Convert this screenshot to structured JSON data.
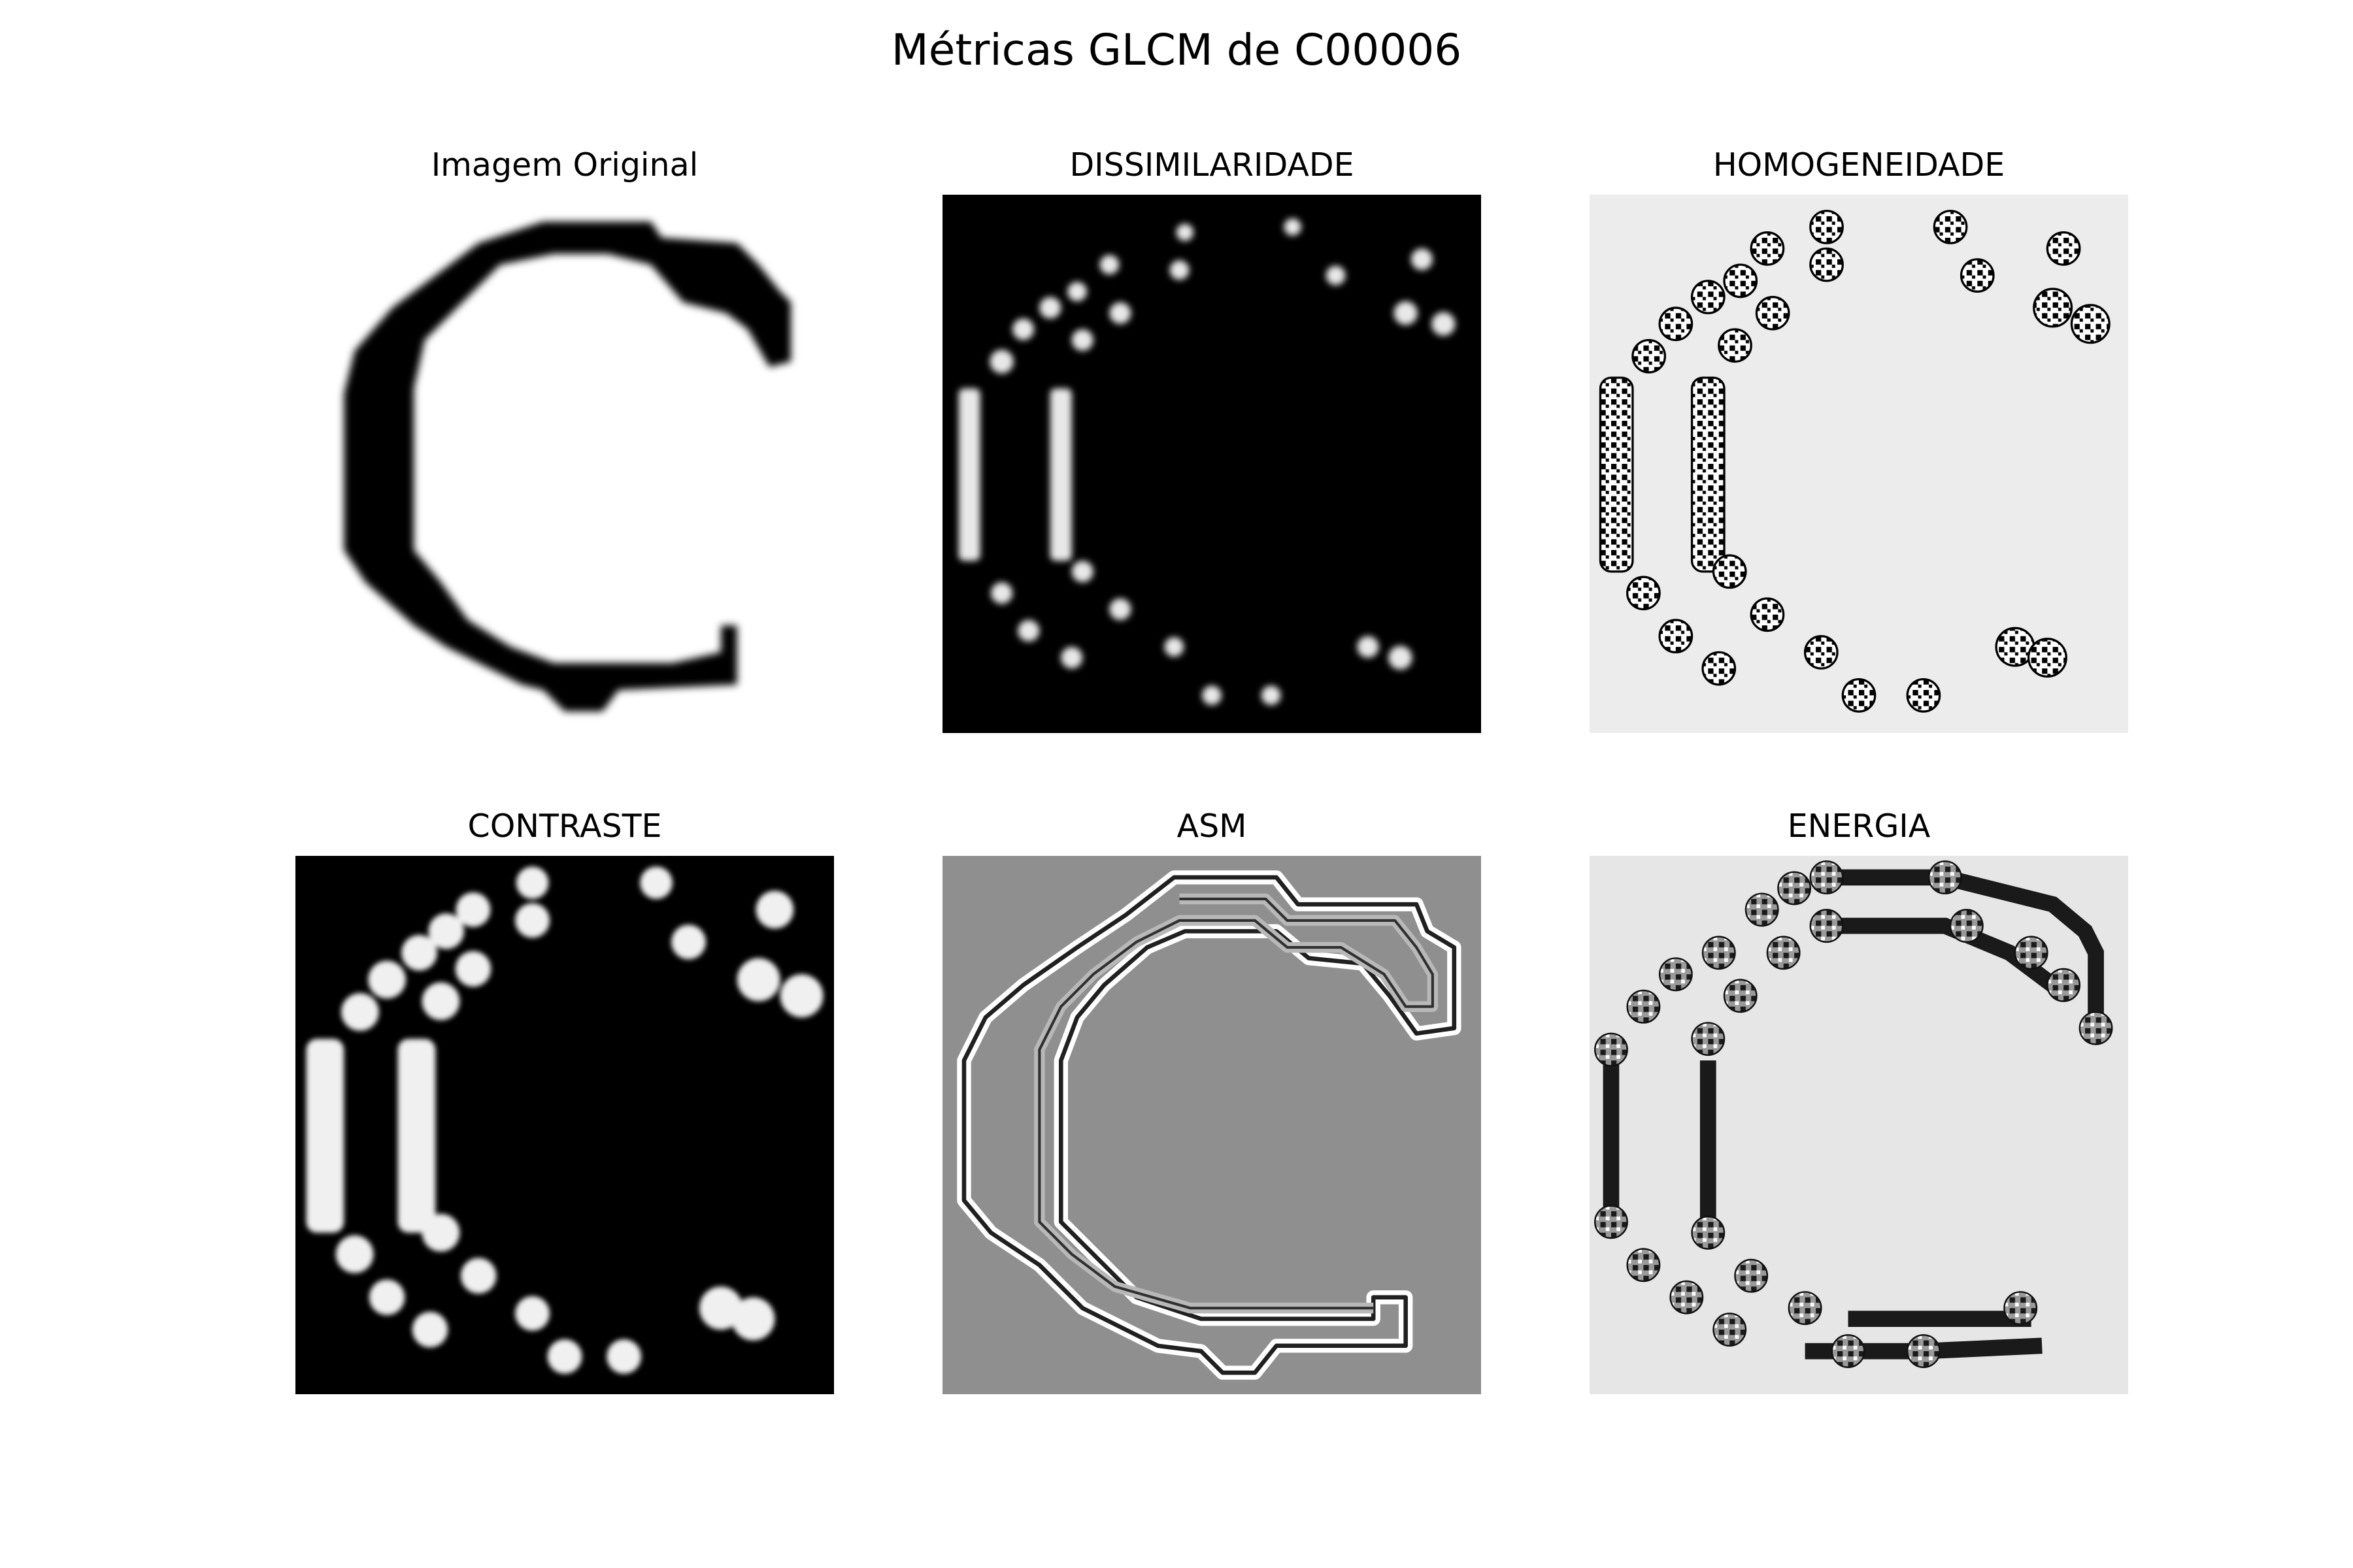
{
  "figure": {
    "title": "Métricas GLCM de C00006"
  },
  "panels": [
    {
      "title": "Imagem Original",
      "background": "#ffffff",
      "style": "glyph"
    },
    {
      "title": "DISSIMILARIDADE",
      "background": "#000000",
      "style": "blobs-light"
    },
    {
      "title": "HOMOGENEIDADE",
      "background": "#ececec",
      "style": "speckle"
    },
    {
      "title": "CONTRASTE",
      "background": "#000000",
      "style": "blobs-light"
    },
    {
      "title": "ASM",
      "background": "#8f8f8f",
      "style": "outline"
    },
    {
      "title": "ENERGIA",
      "background": "#e6e6e6",
      "style": "speckle-bands"
    }
  ]
}
